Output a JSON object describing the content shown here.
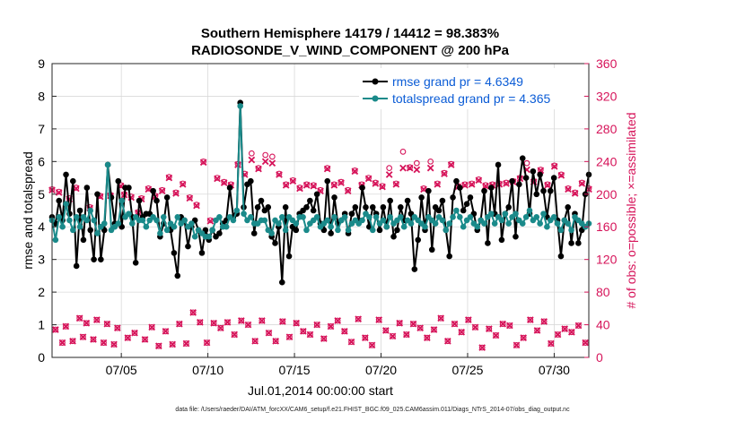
{
  "chart_data": {
    "type": "line",
    "title_line1": "Southern Hemisphere 14179 / 14412 = 98.383%",
    "title_line2": "RADIOSONDE_V_WIND_COMPONENT @ 200 hPa",
    "xlabel": "Jul.01,2014 00:00:00 start",
    "ylabel_left": "rmse and totalspread",
    "ylabel_right": "# of obs: o=possible; ×=assimilated",
    "x_start": 1,
    "x_end": 32,
    "ylim_left": [
      0,
      9
    ],
    "ylim_right": [
      0,
      360
    ],
    "yticks_left": [
      "0",
      "1",
      "2",
      "3",
      "4",
      "5",
      "6",
      "7",
      "8",
      "9"
    ],
    "yticks_right": [
      "0",
      "40",
      "80",
      "120",
      "160",
      "200",
      "240",
      "280",
      "320",
      "360"
    ],
    "xticks": [
      {
        "x": 5,
        "label": "07/05"
      },
      {
        "x": 10,
        "label": "07/10"
      },
      {
        "x": 15,
        "label": "07/15"
      },
      {
        "x": 20,
        "label": "07/20"
      },
      {
        "x": 25,
        "label": "07/25"
      },
      {
        "x": 30,
        "label": "07/30"
      }
    ],
    "colors": {
      "rmse": "#000000",
      "spread": "#1a8a8a",
      "obs": "#d6145a",
      "legend_text": "#0b5cd6",
      "grid": "#d9d9d9"
    },
    "series": [
      {
        "name": "rmse grand pr = 4.6349",
        "axis": "left",
        "values": [
          4.3,
          4.1,
          4.8,
          4.2,
          5.6,
          4.4,
          5.4,
          2.8,
          4.5,
          3.6,
          5.2,
          3.9,
          3.0,
          5.0,
          3.0,
          3.9,
          5.9,
          4.9,
          4.1,
          5.4,
          4.0,
          5.2,
          5.2,
          4.3,
          2.9,
          4.8,
          4.3,
          4.4,
          4.4,
          5.1,
          4.8,
          3.7,
          4.1,
          4.9,
          3.9,
          3.2,
          2.5,
          4.3,
          4.2,
          3.4,
          4.0,
          4.2,
          3.9,
          3.2,
          3.9,
          3.6,
          3.9,
          3.7,
          3.8,
          4.1,
          4.2,
          5.2,
          4.3,
          4.4,
          7.8,
          4.6,
          5.3,
          5.4,
          3.8,
          4.6,
          4.8,
          4.5,
          4.6,
          3.7,
          3.5,
          4.0,
          2.3,
          4.6,
          3.1,
          4.0,
          3.9,
          4.4,
          4.5,
          4.6,
          4.8,
          4.5,
          5.0,
          4.1,
          3.9,
          5.4,
          3.8,
          4.9,
          4.1,
          4.2,
          4.4,
          3.8,
          4.4,
          4.6,
          4.2,
          5.2,
          4.6,
          4.0,
          4.6,
          4.4,
          3.9,
          4.6,
          4.0,
          4.8,
          3.7,
          3.9,
          4.6,
          4.2,
          4.8,
          4.4,
          2.7,
          3.6,
          4.9,
          3.9,
          5.1,
          3.3,
          4.6,
          4.5,
          4.8,
          3.9,
          3.1,
          4.9,
          5.4,
          5.2,
          4.5,
          4.7,
          4.9,
          4.4,
          3.9,
          4.2,
          5.1,
          3.5,
          5.2,
          4.4,
          5.9,
          3.6,
          4.4,
          4.6,
          5.4,
          3.7,
          5.3,
          6.1,
          5.5,
          4.4,
          5.7,
          5.0,
          5.6,
          5.1,
          4.3,
          5.1,
          5.5,
          4.2,
          3.1,
          4.2,
          4.6,
          3.5,
          4.4,
          3.5,
          3.9,
          5.0,
          5.6
        ]
      },
      {
        "name": "totalspread grand pr = 4.365",
        "axis": "left",
        "values": [
          4.2,
          3.6,
          4.3,
          4.0,
          4.7,
          4.2,
          3.9,
          4.3,
          4.0,
          4.3,
          4.2,
          4.5,
          4.2,
          3.8,
          4.0,
          4.1,
          5.9,
          3.9,
          4.0,
          4.1,
          4.8,
          4.3,
          4.4,
          4.1,
          4.3,
          4.2,
          4.2,
          4.0,
          4.2,
          4.3,
          4.2,
          3.8,
          4.3,
          3.9,
          4.1,
          4.0,
          4.3,
          4.1,
          4.2,
          4.0,
          4.1,
          3.7,
          3.9,
          3.8,
          3.7,
          3.7,
          3.9,
          4.2,
          4.3,
          4.0,
          4.0,
          4.3,
          4.2,
          4.5,
          7.7,
          4.4,
          4.2,
          4.3,
          4.1,
          4.1,
          4.2,
          4.2,
          3.9,
          3.8,
          4.2,
          4.1,
          4.3,
          3.9,
          4.3,
          4.2,
          4.1,
          4.3,
          4.3,
          3.9,
          4.1,
          4.2,
          4.3,
          4.0,
          4.1,
          4.2,
          4.0,
          4.3,
          3.9,
          4.2,
          4.3,
          3.9,
          4.1,
          4.2,
          4.1,
          4.2,
          4.4,
          4.3,
          3.9,
          4.3,
          4.1,
          4.2,
          4.0,
          4.3,
          4.1,
          4.2,
          4.3,
          4.0,
          4.2,
          4.1,
          4.3,
          4.2,
          4.1,
          4.0,
          4.3,
          4.2,
          4.1,
          4.3,
          4.2,
          3.9,
          4.1,
          4.3,
          4.5,
          4.3,
          4.0,
          4.2,
          4.3,
          4.1,
          4.0,
          4.2,
          4.1,
          4.3,
          4.4,
          4.1,
          4.3,
          4.2,
          4.4,
          4.1,
          4.3,
          4.4,
          4.2,
          4.1,
          4.3,
          4.5,
          4.2,
          4.3,
          4.1,
          4.4,
          4.0,
          4.2,
          4.3,
          4.1,
          3.9,
          4.2,
          4.1,
          3.9,
          4.3,
          4.2,
          4.1,
          4.0,
          4.1
        ]
      },
      {
        "name": "obs possible",
        "axis": "right",
        "values": [
          206,
          34,
          203,
          18,
          38,
          195,
          20,
          208,
          48,
          25,
          42,
          184,
          22,
          46,
          198,
          18,
          41,
          199,
          16,
          36,
          211,
          200,
          24,
          197,
          30,
          178,
          195,
          22,
          207,
          37,
          198,
          14,
          205,
          32,
          221,
          16,
          202,
          41,
          213,
          17,
          196,
          55,
          187,
          43,
          240,
          18,
          168,
          42,
          220,
          36,
          215,
          43,
          212,
          28,
          237,
          45,
          225,
          40,
          250,
          20,
          232,
          45,
          248,
          30,
          246,
          20,
          225,
          44,
          212,
          25,
          217,
          42,
          208,
          32,
          212,
          28,
          211,
          40,
          205,
          23,
          232,
          38,
          212,
          45,
          215,
          32,
          205,
          19,
          229,
          47,
          212,
          24,
          220,
          15,
          214,
          46,
          210,
          33,
          232,
          26,
          213,
          42,
          252,
          28,
          233,
          41,
          238,
          36,
          207,
          24,
          240,
          34,
          213,
          48,
          226,
          20,
          237,
          41,
          210,
          31,
          212,
          46,
          213,
          37,
          218,
          12,
          211,
          35,
          212,
          27,
          213,
          41,
          214,
          39,
          216,
          15,
          220,
          24,
          238,
          46,
          216,
          33,
          230,
          44,
          212,
          17,
          235,
          28,
          224,
          35,
          207,
          31,
          202,
          39,
          214,
          18,
          207
        ]
      },
      {
        "name": "obs assimilated",
        "axis": "right",
        "values": [
          205,
          34,
          202,
          18,
          38,
          194,
          20,
          207,
          48,
          25,
          42,
          183,
          22,
          46,
          197,
          18,
          41,
          198,
          16,
          36,
          210,
          199,
          24,
          196,
          30,
          177,
          194,
          22,
          206,
          37,
          197,
          14,
          204,
          32,
          220,
          16,
          201,
          41,
          212,
          17,
          195,
          55,
          186,
          43,
          239,
          18,
          167,
          42,
          219,
          36,
          214,
          43,
          211,
          28,
          236,
          45,
          224,
          40,
          242,
          20,
          231,
          45,
          240,
          30,
          238,
          20,
          224,
          44,
          211,
          25,
          216,
          42,
          207,
          32,
          211,
          28,
          210,
          40,
          204,
          23,
          231,
          38,
          211,
          45,
          214,
          32,
          204,
          19,
          228,
          47,
          211,
          24,
          219,
          15,
          213,
          46,
          209,
          33,
          224,
          26,
          212,
          42,
          232,
          28,
          232,
          41,
          230,
          36,
          206,
          24,
          232,
          34,
          212,
          48,
          225,
          20,
          236,
          41,
          209,
          31,
          211,
          46,
          212,
          37,
          217,
          12,
          210,
          35,
          211,
          27,
          212,
          41,
          213,
          39,
          215,
          15,
          219,
          24,
          230,
          46,
          215,
          33,
          229,
          44,
          211,
          17,
          234,
          28,
          223,
          35,
          206,
          31,
          201,
          39,
          213,
          18,
          206
        ]
      }
    ],
    "legend_position": "top-right"
  },
  "footer": "data file: /Users/raeder/DAI/ATM_forcXX/CAM6_setup/f.e21.FHIST_BGC.f09_025.CAM6assim.011/Diags_NTrS_2014-07/obs_diag_output.nc"
}
